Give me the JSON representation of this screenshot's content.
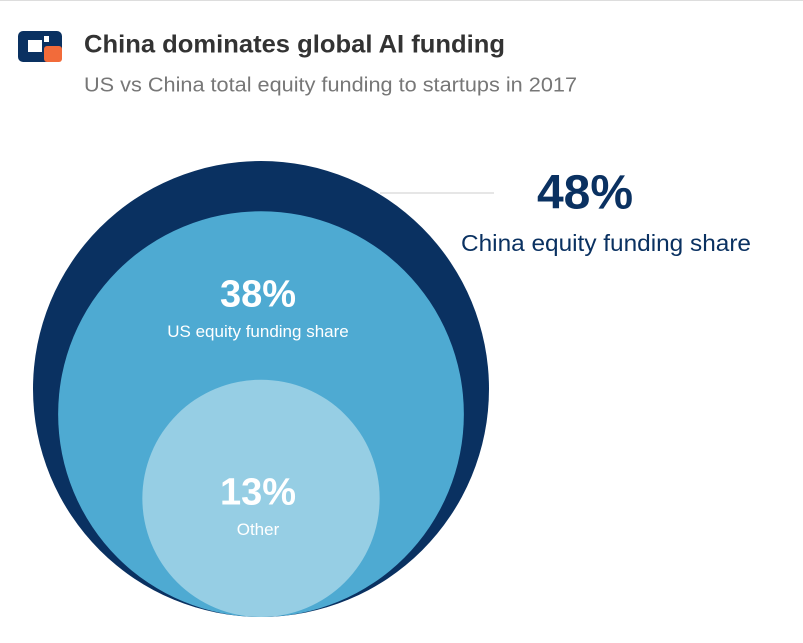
{
  "chart_data": {
    "type": "nested-circles",
    "title": "China dominates global AI funding",
    "subtitle": "US vs China total equity funding to startups in 2017",
    "categories": [
      "China equity funding share",
      "US equity funding share",
      "Other"
    ],
    "values": [
      48,
      38,
      13
    ],
    "value_labels": [
      "48%",
      "38%",
      "13%"
    ],
    "colors": [
      "#0a3161",
      "#4eaad2",
      "#96cee4"
    ]
  }
}
